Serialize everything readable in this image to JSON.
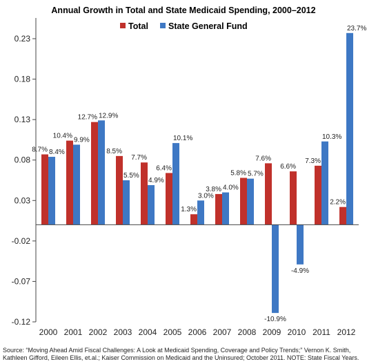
{
  "chart_data": {
    "type": "bar",
    "title": "Annual Growth in Total and State Medicaid Spending, 2000–2012",
    "categories": [
      "2000",
      "2001",
      "2002",
      "2003",
      "2004",
      "2005",
      "2006",
      "2007",
      "2008",
      "2009",
      "2010",
      "2011",
      "2012"
    ],
    "series": [
      {
        "name": "Total",
        "color": "#c0312b",
        "values": [
          0.087,
          0.104,
          0.127,
          0.085,
          0.077,
          0.064,
          0.013,
          0.038,
          0.058,
          0.076,
          0.066,
          0.073,
          0.022
        ],
        "labels": [
          "8.7%",
          "10.4%",
          "12.7%",
          "8.5%",
          "7.7%",
          "6.4%",
          "1.3%",
          "3.8%",
          "5.8%",
          "7.6%",
          "6.6%",
          "7.3%",
          "2.2%"
        ]
      },
      {
        "name": "State General Fund",
        "color": "#3e78c4",
        "values": [
          0.084,
          0.099,
          0.129,
          0.055,
          0.049,
          0.101,
          0.03,
          0.04,
          0.057,
          -0.109,
          -0.049,
          0.103,
          0.237
        ],
        "labels": [
          "8.4%",
          "9.9%",
          "12.9%",
          "5.5%",
          "4.9%",
          "10.1%",
          "3.0%",
          "4.0%",
          "5.7%",
          "-10.9%",
          "-4.9%",
          "10.3%",
          "23.7%"
        ]
      }
    ],
    "yticks": [
      0.23,
      0.18,
      0.13,
      0.08,
      0.03,
      -0.02,
      -0.07,
      -0.12
    ],
    "ytick_labels": [
      "0.23",
      "0.18",
      "0.13",
      "0.08",
      "0.03",
      "-0.02",
      "-0.07",
      "-0.12"
    ],
    "ylim": [
      -0.12,
      0.25
    ],
    "grid": false,
    "legend_position": "top-center",
    "source": "Source: “Moving Ahead Amid Fiscal Challenges: A Look at Medicaid Spending, Coverage and Policy Trends;” Vernon K. Smith, Kathleen Gifford, Eileen Ellis, et.al.; Kaiser Commission on Medicaid and the Uninsured; October 2011. NOTE: State Fiscal Years."
  }
}
